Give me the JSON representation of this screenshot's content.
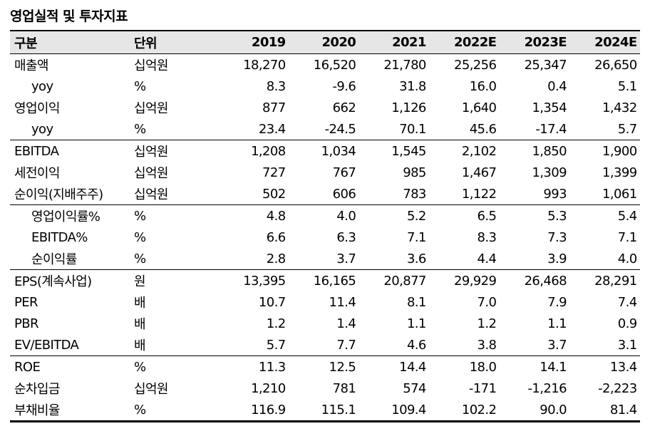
{
  "title": "영업실적 및 투자지표",
  "headers": {
    "item": "구분",
    "unit": "단위",
    "years": [
      "2019",
      "2020",
      "2021",
      "2022E",
      "2023E",
      "2024E"
    ]
  },
  "rows": [
    {
      "label": "매출액",
      "unit": "십억원",
      "values": [
        "18,270",
        "16,520",
        "21,780",
        "25,256",
        "25,347",
        "26,650"
      ]
    },
    {
      "label": "yoy",
      "unit": "%",
      "values": [
        "8.3",
        "-9.6",
        "31.8",
        "16.0",
        "0.4",
        "5.1"
      ]
    },
    {
      "label": "영업이익",
      "unit": "십억원",
      "values": [
        "877",
        "662",
        "1,126",
        "1,640",
        "1,354",
        "1,432"
      ]
    },
    {
      "label": "yoy",
      "unit": "%",
      "values": [
        "23.4",
        "-24.5",
        "70.1",
        "45.6",
        "-17.4",
        "5.7"
      ]
    },
    {
      "label": "EBITDA",
      "unit": "십억원",
      "values": [
        "1,208",
        "1,034",
        "1,545",
        "2,102",
        "1,850",
        "1,900"
      ]
    },
    {
      "label": "세전이익",
      "unit": "십억원",
      "values": [
        "727",
        "767",
        "985",
        "1,467",
        "1,309",
        "1,399"
      ]
    },
    {
      "label": "순이익(지배주주)",
      "unit": "십억원",
      "values": [
        "502",
        "606",
        "783",
        "1,122",
        "993",
        "1,061"
      ]
    },
    {
      "label": "영업이익률%",
      "unit": "%",
      "values": [
        "4.8",
        "4.0",
        "5.2",
        "6.5",
        "5.3",
        "5.4"
      ]
    },
    {
      "label": "EBITDA%",
      "unit": "%",
      "values": [
        "6.6",
        "6.3",
        "7.1",
        "8.3",
        "7.3",
        "7.1"
      ]
    },
    {
      "label": "순이익률",
      "unit": "%",
      "values": [
        "2.8",
        "3.7",
        "3.6",
        "4.4",
        "3.9",
        "4.0"
      ]
    },
    {
      "label": "EPS(계속사업)",
      "unit": "원",
      "values": [
        "13,395",
        "16,165",
        "20,877",
        "29,929",
        "26,468",
        "28,291"
      ]
    },
    {
      "label": "PER",
      "unit": "배",
      "values": [
        "10.7",
        "11.4",
        "8.1",
        "7.0",
        "7.9",
        "7.4"
      ]
    },
    {
      "label": "PBR",
      "unit": "배",
      "values": [
        "1.2",
        "1.4",
        "1.1",
        "1.2",
        "1.1",
        "0.9"
      ]
    },
    {
      "label": "EV/EBITDA",
      "unit": "배",
      "values": [
        "5.7",
        "7.7",
        "4.6",
        "3.8",
        "3.7",
        "3.1"
      ]
    },
    {
      "label": "ROE",
      "unit": "%",
      "values": [
        "11.3",
        "12.5",
        "14.4",
        "18.0",
        "14.1",
        "13.4"
      ]
    },
    {
      "label": "순차입금",
      "unit": "십억원",
      "values": [
        "1,210",
        "781",
        "574",
        "-171",
        "-1,216",
        "-2,223"
      ]
    },
    {
      "label": "부채비율",
      "unit": "%",
      "values": [
        "116.9",
        "115.1",
        "109.4",
        "102.2",
        "90.0",
        "81.4"
      ]
    }
  ]
}
